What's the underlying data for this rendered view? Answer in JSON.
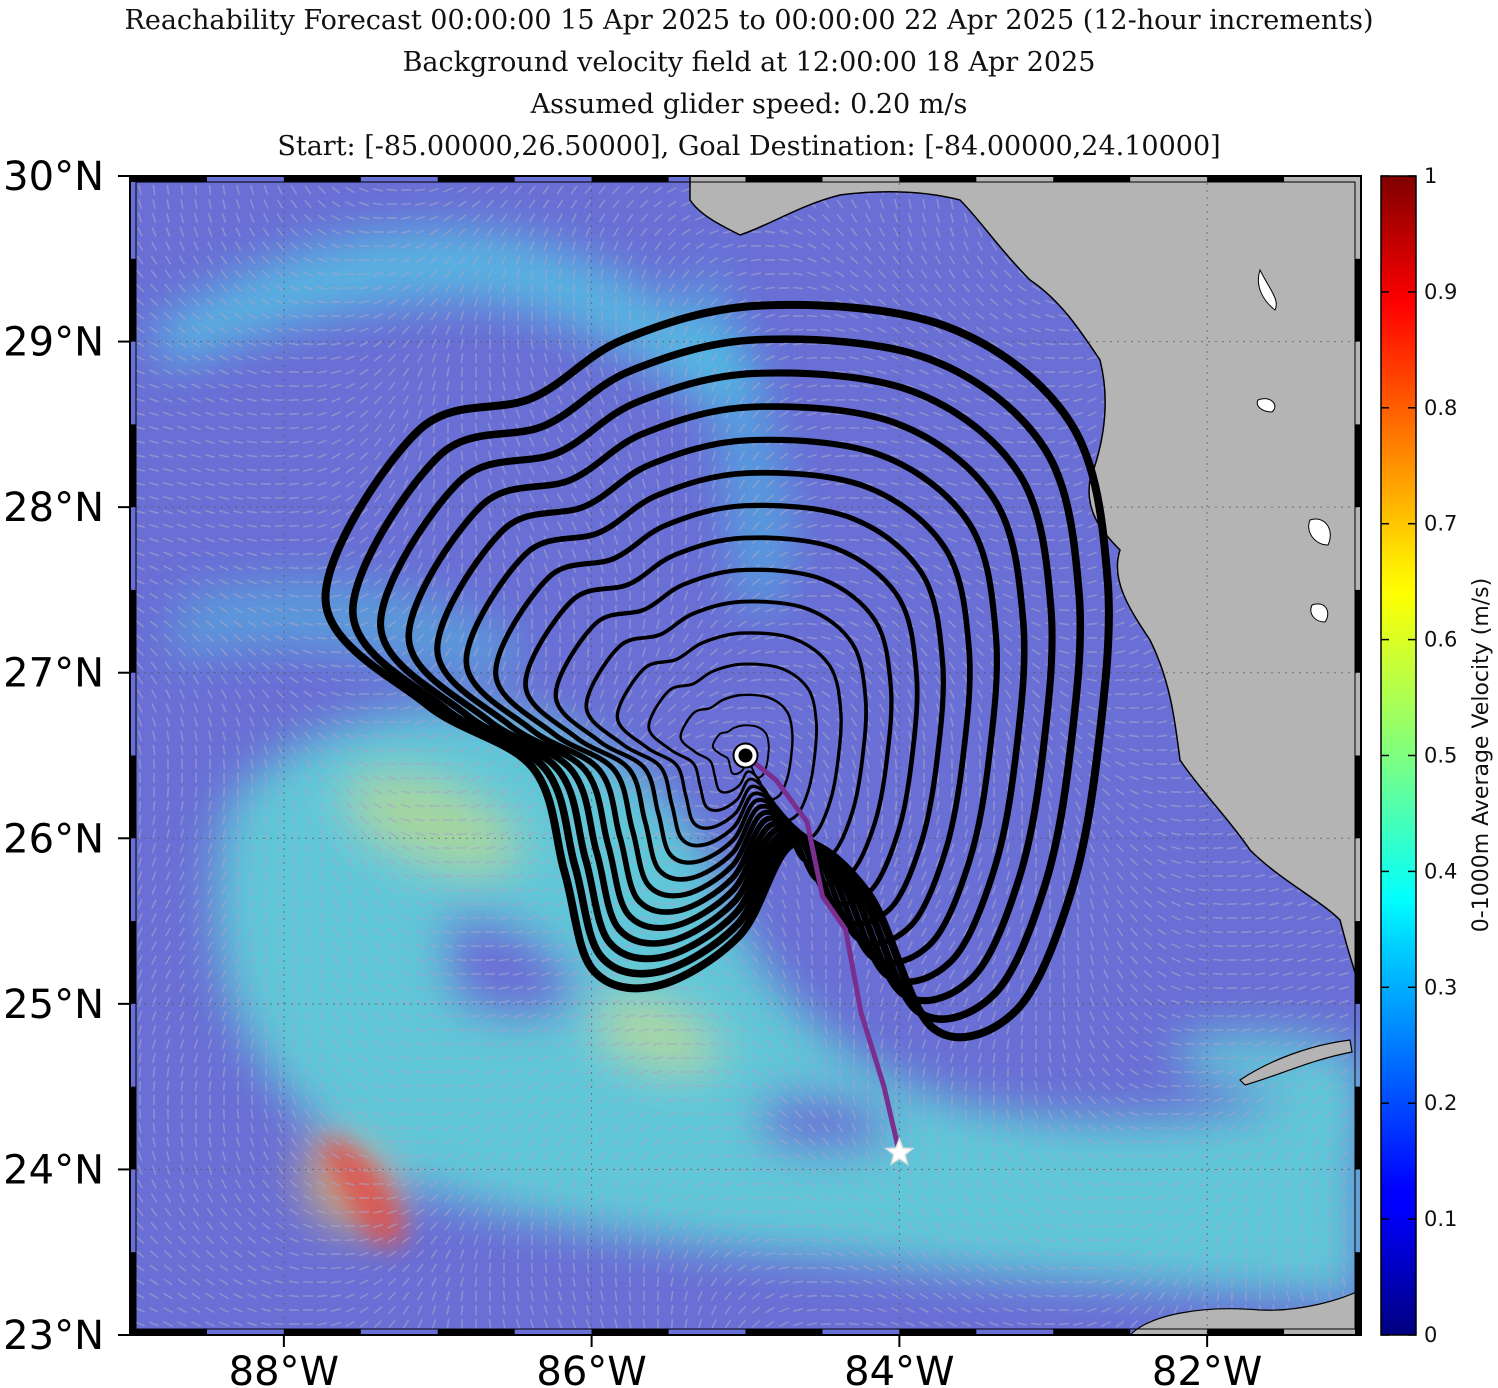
{
  "title": {
    "line1": "Reachability Forecast 00:00:00 15 Apr 2025 to 00:00:00 22 Apr 2025 (12-hour increments)",
    "line2": "Background velocity field at 12:00:00 18 Apr 2025",
    "line3": "Assumed glider speed: 0.20 m/s",
    "line4": "Start: [-85.00000,26.50000], Goal Destination: [-84.00000,24.10000]"
  },
  "map": {
    "lon_range": [
      -89,
      -81
    ],
    "lat_range": [
      23,
      30
    ],
    "lon_ticks": [
      {
        "value": -88,
        "label": "88°W"
      },
      {
        "value": -86,
        "label": "86°W"
      },
      {
        "value": -84,
        "label": "84°W"
      },
      {
        "value": -82,
        "label": "82°W"
      }
    ],
    "lat_ticks": [
      {
        "value": 30,
        "label": "30°N"
      },
      {
        "value": 29,
        "label": "29°N"
      },
      {
        "value": 28,
        "label": "28°N"
      },
      {
        "value": 27,
        "label": "27°N"
      },
      {
        "value": 26,
        "label": "26°N"
      },
      {
        "value": 25,
        "label": "25°N"
      },
      {
        "value": 24,
        "label": "24°N"
      },
      {
        "value": 23,
        "label": "23°N"
      }
    ],
    "start": {
      "lon": -85.0,
      "lat": 26.5
    },
    "goal": {
      "lon": -84.0,
      "lat": 24.1
    },
    "path": [
      [
        -85.0,
        26.5
      ],
      [
        -84.8,
        26.35
      ],
      [
        -84.6,
        26.1
      ],
      [
        -84.5,
        25.65
      ],
      [
        -84.35,
        25.45
      ],
      [
        -84.25,
        24.95
      ],
      [
        -84.1,
        24.5
      ],
      [
        -84.0,
        24.1
      ]
    ],
    "ocean_color": "#6a6fd6",
    "land_color": "#b4b4b4",
    "path_color": "#7a2f8f"
  },
  "colorbar": {
    "title": "0-1000m Average Velocity (m/s)",
    "ticks": [
      "0",
      "0.1",
      "0.2",
      "0.3",
      "0.4",
      "0.5",
      "0.6",
      "0.7",
      "0.8",
      "0.9",
      "1"
    ],
    "range": [
      0,
      1
    ],
    "colormap": "jet"
  }
}
